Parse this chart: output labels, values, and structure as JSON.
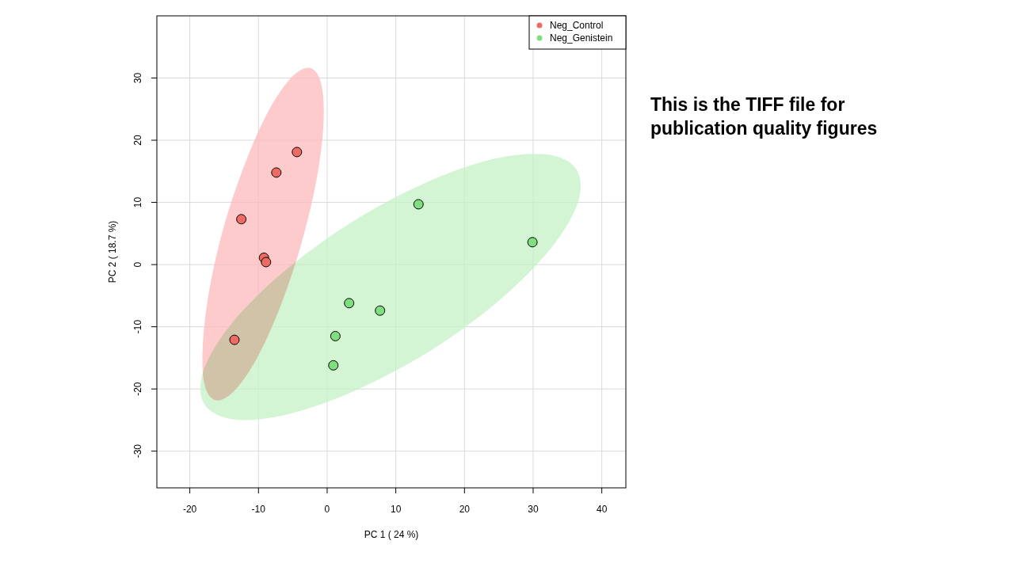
{
  "chart_data": {
    "type": "scatter",
    "xlabel": "PC 1 ( 24 %)",
    "ylabel": "PC 2 ( 18.7 %)",
    "xlim": [
      -24.8,
      43.5
    ],
    "ylim": [
      -35.9,
      40
    ],
    "xticks": [
      -20,
      -10,
      0,
      10,
      20,
      30,
      40
    ],
    "yticks": [
      -30,
      -20,
      -10,
      0,
      10,
      20,
      30
    ],
    "grid": true,
    "legend": "top right",
    "marker": "circle",
    "annotations": [
      "This is the TIFF file for publication quality figures"
    ],
    "series": [
      {
        "type": "area",
        "marker": "none",
        "color": "#fcbaba",
        "x": [
          -2.42,
          -0.83,
          -0.54,
          -1.57,
          -3.8,
          -6.87,
          -10.3,
          -13.6,
          -16.3,
          -17.9,
          -18.1,
          -17.1,
          -14.9,
          -11.8,
          -8.4,
          -5.1,
          -2.42
        ],
        "values": [
          31.6,
          28.9,
          22.5,
          13.5,
          3.2,
          -6.9,
          -15.2,
          -20.4,
          -21.8,
          -19.1,
          -12.7,
          -3.7,
          6.7,
          16.7,
          25.0,
          30.2,
          31.6
        ]
      },
      {
        "type": "area",
        "marker": "none",
        "color": "#c4f2c4",
        "x": [
          36.3,
          36.5,
          32.5,
          25.0,
          15.1,
          4.2,
          -5.8,
          -13.6,
          -17.9,
          -18.0,
          -14.0,
          -6.5,
          3.4,
          14.2,
          24.3,
          32.0,
          36.3
        ],
        "values": [
          15.3,
          9.9,
          2.5,
          -5.8,
          -13.8,
          -20.2,
          -24.1,
          -24.9,
          -22.4,
          -17.0,
          -9.6,
          -1.3,
          6.7,
          13.1,
          17.0,
          17.7,
          15.3
        ]
      },
      {
        "name": "Neg_Control",
        "color": "#ee6b63",
        "x": [
          -12.5,
          -7.4,
          -4.4,
          -9.2,
          -8.9,
          -13.5
        ],
        "values": [
          7.3,
          14.8,
          18.1,
          1.1,
          0.4,
          -12.1
        ]
      },
      {
        "name": "Neg_Genistein",
        "color": "#7fdf7f",
        "x": [
          13.3,
          29.9,
          3.2,
          7.7,
          1.2,
          0.9
        ],
        "values": [
          9.7,
          3.6,
          -6.2,
          -7.4,
          -11.5,
          -16.2
        ]
      }
    ]
  }
}
